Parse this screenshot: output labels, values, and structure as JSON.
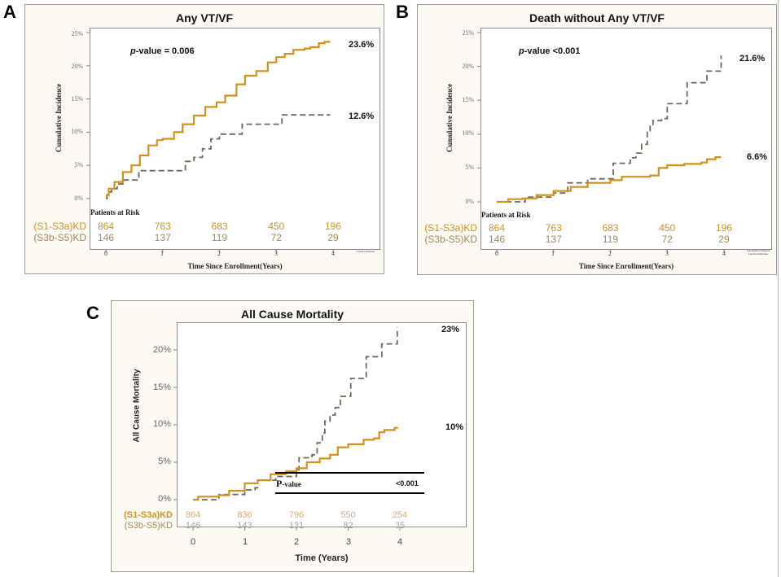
{
  "colors": {
    "group1": "#d4901a",
    "group2": "#6e6a55",
    "frame_bg": "#fdfaf3"
  },
  "chart_data": [
    {
      "id": "A",
      "type": "line",
      "panel_letter": "A",
      "title": "Any VT/VF",
      "ylabel": "Cumulative Incidence",
      "xlabel": "Time Since Enrollment(Years)",
      "ylim": [
        0,
        25
      ],
      "xlim": [
        0,
        4
      ],
      "yticks": [
        "0%",
        "5%",
        "10%",
        "15%",
        "20%",
        "25%"
      ],
      "ytick_values": [
        0,
        5,
        10,
        15,
        20,
        25
      ],
      "xticks": [
        "0",
        "1",
        "2",
        "3",
        "4"
      ],
      "p_value_label": "p",
      "p_value_text": "-value  =  0.006",
      "footnote": "# Year Incidence",
      "risk_header": "Patients at Risk",
      "series": [
        {
          "name": "(S1-S3a)KD",
          "style": "solid",
          "end_label": "23.6%",
          "risk": [
            "864",
            "763",
            "683",
            "450",
            "196"
          ],
          "points": [
            [
              0,
              0.5
            ],
            [
              0.05,
              1.5
            ],
            [
              0.15,
              2.5
            ],
            [
              0.3,
              4.0
            ],
            [
              0.45,
              5.0
            ],
            [
              0.6,
              6.5
            ],
            [
              0.75,
              8.0
            ],
            [
              0.9,
              8.8
            ],
            [
              1.0,
              9.0
            ],
            [
              1.1,
              9.0
            ],
            [
              1.2,
              10.0
            ],
            [
              1.35,
              11.2
            ],
            [
              1.55,
              12.5
            ],
            [
              1.75,
              13.8
            ],
            [
              1.95,
              14.5
            ],
            [
              2.1,
              15.5
            ],
            [
              2.3,
              17.2
            ],
            [
              2.45,
              18.5
            ],
            [
              2.65,
              19.2
            ],
            [
              2.85,
              20.5
            ],
            [
              3.0,
              21.3
            ],
            [
              3.15,
              21.8
            ],
            [
              3.3,
              22.4
            ],
            [
              3.5,
              22.6
            ],
            [
              3.6,
              22.8
            ],
            [
              3.75,
              23.4
            ],
            [
              3.85,
              23.6
            ],
            [
              3.95,
              23.6
            ]
          ]
        },
        {
          "name": "(S3b-S5)KD",
          "style": "dashed",
          "end_label": "12.6%",
          "risk": [
            "146",
            "137",
            "119",
            "72",
            "29"
          ],
          "points": [
            [
              0,
              0
            ],
            [
              0.02,
              1.0
            ],
            [
              0.1,
              1.5
            ],
            [
              0.2,
              2.2
            ],
            [
              0.3,
              2.8
            ],
            [
              0.55,
              2.8
            ],
            [
              0.58,
              4.2
            ],
            [
              1.35,
              4.2
            ],
            [
              1.4,
              5.6
            ],
            [
              1.55,
              6.2
            ],
            [
              1.7,
              7.5
            ],
            [
              1.85,
              9.0
            ],
            [
              2.0,
              9.7
            ],
            [
              2.35,
              9.7
            ],
            [
              2.4,
              11.2
            ],
            [
              3.0,
              11.2
            ],
            [
              3.1,
              12.6
            ],
            [
              3.95,
              12.6
            ]
          ]
        }
      ]
    },
    {
      "id": "B",
      "type": "line",
      "panel_letter": "B",
      "title": "Death without Any VT/VF",
      "ylabel": "Cumulative Incidence",
      "xlabel": "Time Since Enrollment(Years)",
      "ylim": [
        0,
        25
      ],
      "xlim": [
        0,
        4
      ],
      "yticks": [
        "0%",
        "5%",
        "10%",
        "15%",
        "20%",
        "25%"
      ],
      "ytick_values": [
        0,
        5,
        10,
        15,
        20,
        25
      ],
      "xticks": [
        "0",
        "1",
        "2",
        "3",
        "4"
      ],
      "p_value_label": "p",
      "p_value_text": "-value   <0.001",
      "footnote": "Cumulative Incidence Function Estimate",
      "risk_header": "Patients at Risk",
      "series": [
        {
          "name": "(S1-S3a)KD",
          "style": "solid",
          "end_label": "6.6%",
          "risk": [
            "864",
            "763",
            "683",
            "450",
            "196"
          ],
          "points": [
            [
              0,
              0
            ],
            [
              0.2,
              0.4
            ],
            [
              0.45,
              0.5
            ],
            [
              0.7,
              1.0
            ],
            [
              1.0,
              1.6
            ],
            [
              1.3,
              2.2
            ],
            [
              1.6,
              2.8
            ],
            [
              2.0,
              3.2
            ],
            [
              2.2,
              3.7
            ],
            [
              2.7,
              3.9
            ],
            [
              2.85,
              5.0
            ],
            [
              3.0,
              5.4
            ],
            [
              3.3,
              5.6
            ],
            [
              3.6,
              5.8
            ],
            [
              3.7,
              6.3
            ],
            [
              3.85,
              6.6
            ],
            [
              3.95,
              6.6
            ]
          ]
        },
        {
          "name": "(S3b-S5)KD",
          "style": "dashed",
          "end_label": "21.6%",
          "risk": [
            "146",
            "137",
            "119",
            "72",
            "29"
          ],
          "points": [
            [
              0,
              0
            ],
            [
              0.5,
              0
            ],
            [
              0.5,
              0.7
            ],
            [
              1.0,
              0.7
            ],
            [
              1.0,
              1.3
            ],
            [
              1.25,
              1.3
            ],
            [
              1.25,
              2.8
            ],
            [
              1.6,
              2.8
            ],
            [
              1.6,
              3.4
            ],
            [
              2.05,
              3.4
            ],
            [
              2.05,
              5.7
            ],
            [
              2.25,
              5.7
            ],
            [
              2.35,
              6.5
            ],
            [
              2.45,
              7.2
            ],
            [
              2.55,
              8.5
            ],
            [
              2.65,
              10.5
            ],
            [
              2.7,
              11.3
            ],
            [
              2.75,
              12.0
            ],
            [
              2.9,
              12.3
            ],
            [
              3.0,
              14.5
            ],
            [
              3.2,
              14.5
            ],
            [
              3.35,
              17.6
            ],
            [
              3.55,
              17.6
            ],
            [
              3.7,
              19.3
            ],
            [
              3.9,
              19.3
            ],
            [
              3.95,
              21.6
            ]
          ]
        }
      ]
    },
    {
      "id": "C",
      "type": "line",
      "panel_letter": "C",
      "title": "All Cause Mortality",
      "ylabel": "All Cause Mortality",
      "xlabel": "Time (Years)",
      "ylim": [
        0,
        23
      ],
      "xlim": [
        0,
        4
      ],
      "yticks": [
        "0%",
        "5%",
        "10%",
        "15%",
        "20%"
      ],
      "ytick_values": [
        0,
        5,
        10,
        15,
        20
      ],
      "xticks": [
        "0",
        "1",
        "2",
        "3",
        "4"
      ],
      "p_value_label": "P",
      "p_value_name": "-value",
      "p_value_text": "<0.001",
      "series": [
        {
          "name": "(S1-S3a)KD",
          "style": "solid",
          "end_label": "10%",
          "risk": [
            "864",
            "836",
            "796",
            "550",
            "254"
          ],
          "points": [
            [
              0,
              0
            ],
            [
              0.1,
              0.4
            ],
            [
              0.5,
              0.6
            ],
            [
              0.7,
              1.2
            ],
            [
              1.0,
              2.2
            ],
            [
              1.25,
              2.6
            ],
            [
              1.5,
              3.4
            ],
            [
              1.8,
              3.8
            ],
            [
              2.0,
              4.2
            ],
            [
              2.2,
              5.0
            ],
            [
              2.45,
              5.5
            ],
            [
              2.65,
              6.0
            ],
            [
              2.8,
              7.0
            ],
            [
              3.0,
              7.4
            ],
            [
              3.3,
              8.0
            ],
            [
              3.5,
              8.2
            ],
            [
              3.6,
              9.0
            ],
            [
              3.7,
              9.3
            ],
            [
              3.9,
              9.6
            ],
            [
              3.95,
              9.7
            ]
          ]
        },
        {
          "name": "(S3b-S5)KD",
          "style": "dashed",
          "end_label": "23%",
          "risk": [
            "146",
            "143",
            "131",
            "82",
            "35"
          ],
          "points": [
            [
              0,
              0
            ],
            [
              0.5,
              0
            ],
            [
              0.5,
              0.7
            ],
            [
              0.95,
              0.7
            ],
            [
              1.0,
              1.3
            ],
            [
              1.2,
              1.6
            ],
            [
              1.25,
              2.6
            ],
            [
              1.55,
              2.6
            ],
            [
              1.6,
              3.1
            ],
            [
              2.0,
              3.1
            ],
            [
              2.0,
              4.0
            ],
            [
              2.05,
              5.6
            ],
            [
              2.2,
              5.6
            ],
            [
              2.3,
              6.0
            ],
            [
              2.4,
              7.6
            ],
            [
              2.5,
              8.9
            ],
            [
              2.55,
              10.5
            ],
            [
              2.65,
              11.3
            ],
            [
              2.75,
              12.3
            ],
            [
              2.85,
              13.8
            ],
            [
              3.0,
              13.8
            ],
            [
              3.05,
              16.2
            ],
            [
              3.3,
              16.2
            ],
            [
              3.35,
              19.1
            ],
            [
              3.6,
              19.1
            ],
            [
              3.65,
              20.8
            ],
            [
              3.9,
              20.8
            ],
            [
              3.95,
              23.0
            ]
          ]
        }
      ]
    }
  ]
}
